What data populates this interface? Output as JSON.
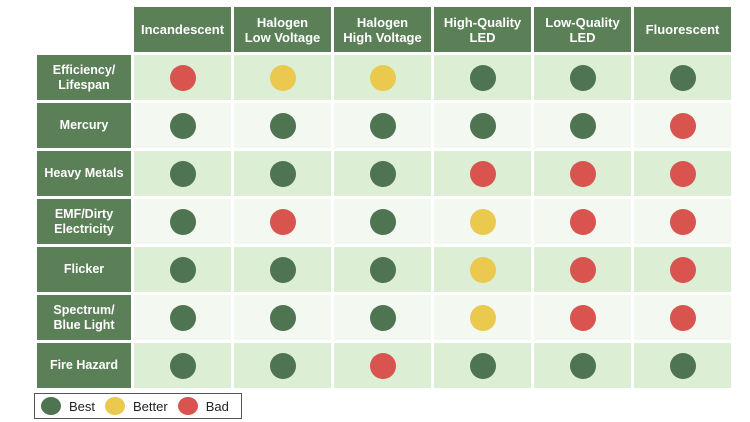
{
  "table": {
    "columns": [
      {
        "lines": [
          "Incandescent"
        ]
      },
      {
        "lines": [
          "Halogen",
          "Low Voltage"
        ]
      },
      {
        "lines": [
          "Halogen",
          "High Voltage"
        ]
      },
      {
        "lines": [
          "High-Quality",
          "LED"
        ]
      },
      {
        "lines": [
          "Low-Quality",
          "LED"
        ]
      },
      {
        "lines": [
          "Fluorescent"
        ]
      }
    ],
    "rows": [
      {
        "lines": [
          "Efficiency/",
          "Lifespan"
        ],
        "ratings": [
          "bad",
          "better",
          "better",
          "best",
          "best",
          "best"
        ]
      },
      {
        "lines": [
          "Mercury"
        ],
        "ratings": [
          "best",
          "best",
          "best",
          "best",
          "best",
          "bad"
        ]
      },
      {
        "lines": [
          "Heavy Metals"
        ],
        "ratings": [
          "best",
          "best",
          "best",
          "bad",
          "bad",
          "bad"
        ]
      },
      {
        "lines": [
          "EMF/Dirty",
          "Electricity"
        ],
        "ratings": [
          "best",
          "bad",
          "best",
          "better",
          "bad",
          "bad"
        ]
      },
      {
        "lines": [
          "Flicker"
        ],
        "ratings": [
          "best",
          "best",
          "best",
          "better",
          "bad",
          "bad"
        ]
      },
      {
        "lines": [
          "Spectrum/",
          "Blue Light"
        ],
        "ratings": [
          "best",
          "best",
          "best",
          "better",
          "bad",
          "bad"
        ]
      },
      {
        "lines": [
          "Fire Hazard"
        ],
        "ratings": [
          "best",
          "best",
          "bad",
          "best",
          "best",
          "best"
        ]
      }
    ]
  },
  "legend": [
    {
      "key": "best",
      "label": "Best"
    },
    {
      "key": "better",
      "label": "Better"
    },
    {
      "key": "bad",
      "label": "Bad"
    }
  ],
  "colors": {
    "header_green": "#5b7f57",
    "best": "#4e7452",
    "better": "#ebc94f",
    "bad": "#d9534f",
    "row_band_dark": "#dcefd5",
    "row_band_light": "#f3f8f1"
  }
}
